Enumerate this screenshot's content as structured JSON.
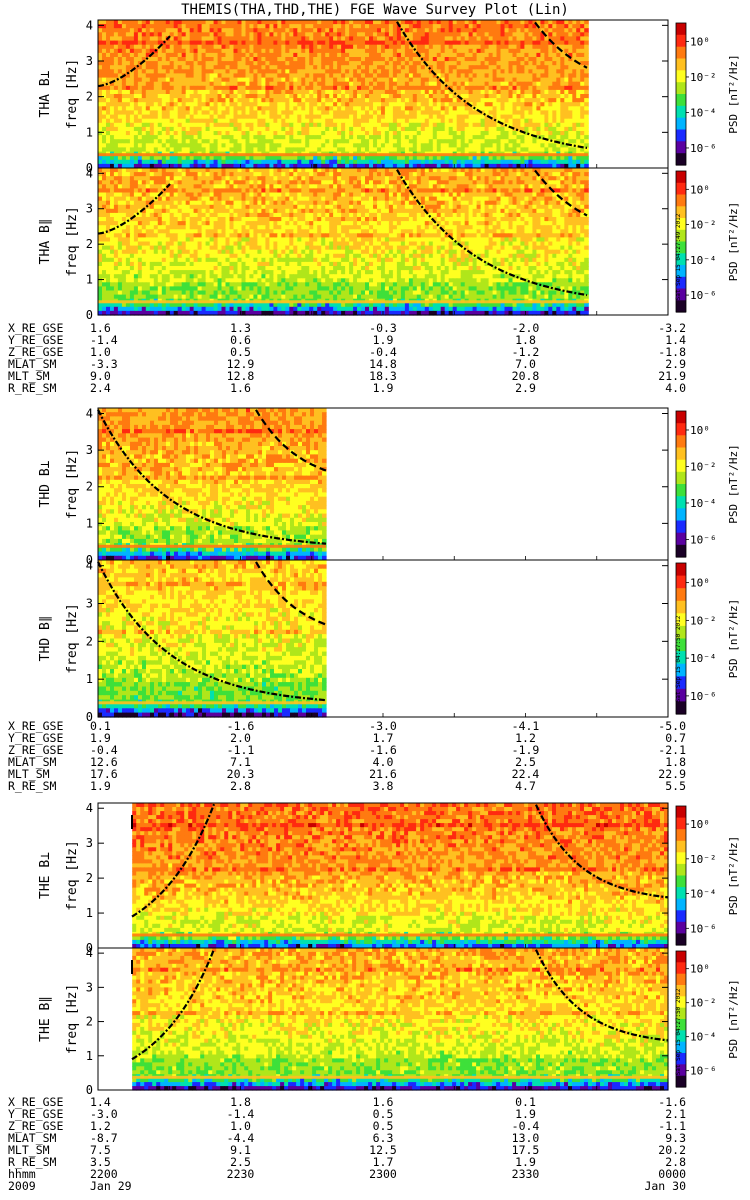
{
  "title": "THEMIS(THA,THD,THE) FGE Wave Survey Plot (Lin)",
  "colorbar": {
    "label": "PSD [nT²/Hz]",
    "ticks": [
      "10⁰",
      "10⁻²",
      "10⁻⁴",
      "10⁻⁶"
    ],
    "colors": [
      "#1a0026",
      "#5a00a0",
      "#1a2bff",
      "#00b4ff",
      "#00e0b0",
      "#3ee03a",
      "#b0e61a",
      "#ffff20",
      "#ffc020",
      "#ff7a10",
      "#ff2a10",
      "#c80000"
    ]
  },
  "timestamps": [
    "Sat Sep 15 04:27:49 2012",
    "Sat Sep 15 04:27:50 2012",
    "Sat Sep 15 04:27:50 2012"
  ],
  "time_axis": {
    "row_label": "hhmm",
    "ticks": [
      "2200",
      "2230",
      "2300",
      "2330",
      "0000"
    ],
    "year": "2009",
    "start_date": "Jan 29",
    "end_date": "Jan 30"
  },
  "chart_data": [
    {
      "type": "heatmap",
      "probe": "THA",
      "ylabel_component": "THA B⊥",
      "ylabel_unit": "freq [Hz]",
      "ylim": [
        0,
        4
      ],
      "yticks": [
        0,
        1,
        2,
        3,
        4
      ],
      "x_range_hhmm": [
        "2200",
        "0000"
      ],
      "data_end_fraction": 0.86,
      "curves": [
        {
          "style": "dash-dot"
        },
        {
          "style": "dashed"
        }
      ]
    },
    {
      "type": "heatmap",
      "probe": "THA",
      "ylabel_component": "THA B∥",
      "ylabel_unit": "freq [Hz]",
      "ylim": [
        0,
        4
      ],
      "yticks": [
        0,
        1,
        2,
        3,
        4
      ],
      "x_range_hhmm": [
        "2200",
        "0000"
      ],
      "data_end_fraction": 0.86,
      "curves": [
        {
          "style": "dash-dot"
        },
        {
          "style": "dashed"
        }
      ]
    },
    {
      "type": "heatmap",
      "probe": "THD",
      "ylabel_component": "THD B⊥",
      "ylabel_unit": "freq [Hz]",
      "ylim": [
        0,
        4
      ],
      "yticks": [
        0,
        1,
        2,
        3,
        4
      ],
      "x_range_hhmm": [
        "2200",
        "0000"
      ],
      "data_end_fraction": 0.4,
      "curves": [
        {
          "style": "dash-dot"
        },
        {
          "style": "dashed"
        }
      ]
    },
    {
      "type": "heatmap",
      "probe": "THD",
      "ylabel_component": "THD B∥",
      "ylabel_unit": "freq [Hz]",
      "ylim": [
        0,
        4
      ],
      "yticks": [
        0,
        1,
        2,
        3,
        4
      ],
      "x_range_hhmm": [
        "2200",
        "0000"
      ],
      "data_end_fraction": 0.4,
      "curves": [
        {
          "style": "dash-dot"
        },
        {
          "style": "dashed"
        }
      ]
    },
    {
      "type": "heatmap",
      "probe": "THE",
      "ylabel_component": "THE B⊥",
      "ylabel_unit": "freq [Hz]",
      "ylim": [
        0,
        4
      ],
      "yticks": [
        0,
        1,
        2,
        3,
        4
      ],
      "x_range_hhmm": [
        "2200",
        "0000"
      ],
      "data_start_fraction": 0.06,
      "curves": [
        {
          "style": "dash-dot"
        }
      ]
    },
    {
      "type": "heatmap",
      "probe": "THE",
      "ylabel_component": "THE B∥",
      "ylabel_unit": "freq [Hz]",
      "ylim": [
        0,
        4
      ],
      "yticks": [
        0,
        1,
        2,
        3,
        4
      ],
      "x_range_hhmm": [
        "2200",
        "0000"
      ],
      "data_start_fraction": 0.06,
      "curves": [
        {
          "style": "dash-dot"
        }
      ]
    }
  ],
  "ephemeris": [
    {
      "probe": "THA",
      "rows": [
        {
          "label": "X_RE_GSE",
          "values": [
            "1.6",
            "1.3",
            "-0.3",
            "-2.0",
            "-3.2"
          ]
        },
        {
          "label": "Y_RE_GSE",
          "values": [
            "-1.4",
            "0.6",
            "1.9",
            "1.8",
            "1.4"
          ]
        },
        {
          "label": "Z_RE_GSE",
          "values": [
            "1.0",
            "0.5",
            "-0.4",
            "-1.2",
            "-1.8"
          ]
        },
        {
          "label": "MLAT_SM",
          "values": [
            "-3.3",
            "12.9",
            "14.8",
            "7.0",
            "2.9"
          ]
        },
        {
          "label": "MLT_SM",
          "values": [
            "9.0",
            "12.8",
            "18.3",
            "20.8",
            "21.9"
          ]
        },
        {
          "label": "R_RE_SM",
          "values": [
            "2.4",
            "1.6",
            "1.9",
            "2.9",
            "4.0"
          ]
        }
      ]
    },
    {
      "probe": "THD",
      "rows": [
        {
          "label": "X_RE_GSE",
          "values": [
            "0.1",
            "-1.6",
            "-3.0",
            "-4.1",
            "-5.0"
          ]
        },
        {
          "label": "Y_RE_GSE",
          "values": [
            "1.9",
            "2.0",
            "1.7",
            "1.2",
            "0.7"
          ]
        },
        {
          "label": "Z_RE_GSE",
          "values": [
            "-0.4",
            "-1.1",
            "-1.6",
            "-1.9",
            "-2.1"
          ]
        },
        {
          "label": "MLAT_SM",
          "values": [
            "12.6",
            "7.1",
            "4.0",
            "2.5",
            "1.8"
          ]
        },
        {
          "label": "MLT_SM",
          "values": [
            "17.6",
            "20.3",
            "21.6",
            "22.4",
            "22.9"
          ]
        },
        {
          "label": "R_RE_SM",
          "values": [
            "1.9",
            "2.8",
            "3.8",
            "4.7",
            "5.5"
          ]
        }
      ]
    },
    {
      "probe": "THE",
      "rows": [
        {
          "label": "X_RE_GSE",
          "values": [
            "1.4",
            "1.8",
            "1.6",
            "0.1",
            "-1.6"
          ]
        },
        {
          "label": "Y_RE_GSE",
          "values": [
            "-3.0",
            "-1.4",
            "0.5",
            "1.9",
            "2.1"
          ]
        },
        {
          "label": "Z_RE_GSE",
          "values": [
            "1.2",
            "1.0",
            "0.5",
            "-0.4",
            "-1.1"
          ]
        },
        {
          "label": "MLAT_SM",
          "values": [
            "-8.7",
            "-4.4",
            "6.3",
            "13.0",
            "9.3"
          ]
        },
        {
          "label": "MLT_SM",
          "values": [
            "7.5",
            "9.1",
            "12.5",
            "17.5",
            "20.2"
          ]
        },
        {
          "label": "R_RE_SM",
          "values": [
            "3.5",
            "2.5",
            "1.7",
            "1.9",
            "2.8"
          ]
        }
      ]
    }
  ]
}
